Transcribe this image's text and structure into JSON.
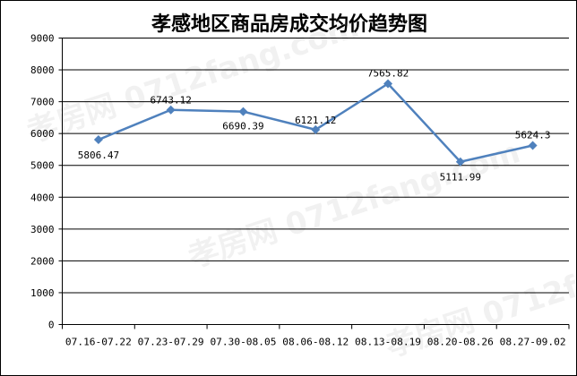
{
  "watermark": "孝房网 0712fang.com",
  "chart_data": {
    "type": "line",
    "title": "孝感地区商品房成交均价趋势图",
    "xlabel": "",
    "ylabel": "",
    "categories": [
      "07.16-07.22",
      "07.23-07.29",
      "07.30-08.05",
      "08.06-08.12",
      "08.13-08.19",
      "08.20-08.26",
      "08.27-09.02"
    ],
    "values": [
      5806.47,
      6743.12,
      6690.39,
      6121.12,
      7565.82,
      5111.99,
      5624.3
    ],
    "data_labels": [
      "5806.47",
      "6743.12",
      "6690.39",
      "6121.12",
      "7565.82",
      "5111.99",
      "5624.3"
    ],
    "ylim": [
      0,
      9000
    ],
    "yticks": [
      0,
      1000,
      2000,
      3000,
      4000,
      5000,
      6000,
      7000,
      8000,
      9000
    ],
    "grid": true,
    "legend": "none",
    "line_color": "#4f81bd",
    "marker": "diamond"
  }
}
